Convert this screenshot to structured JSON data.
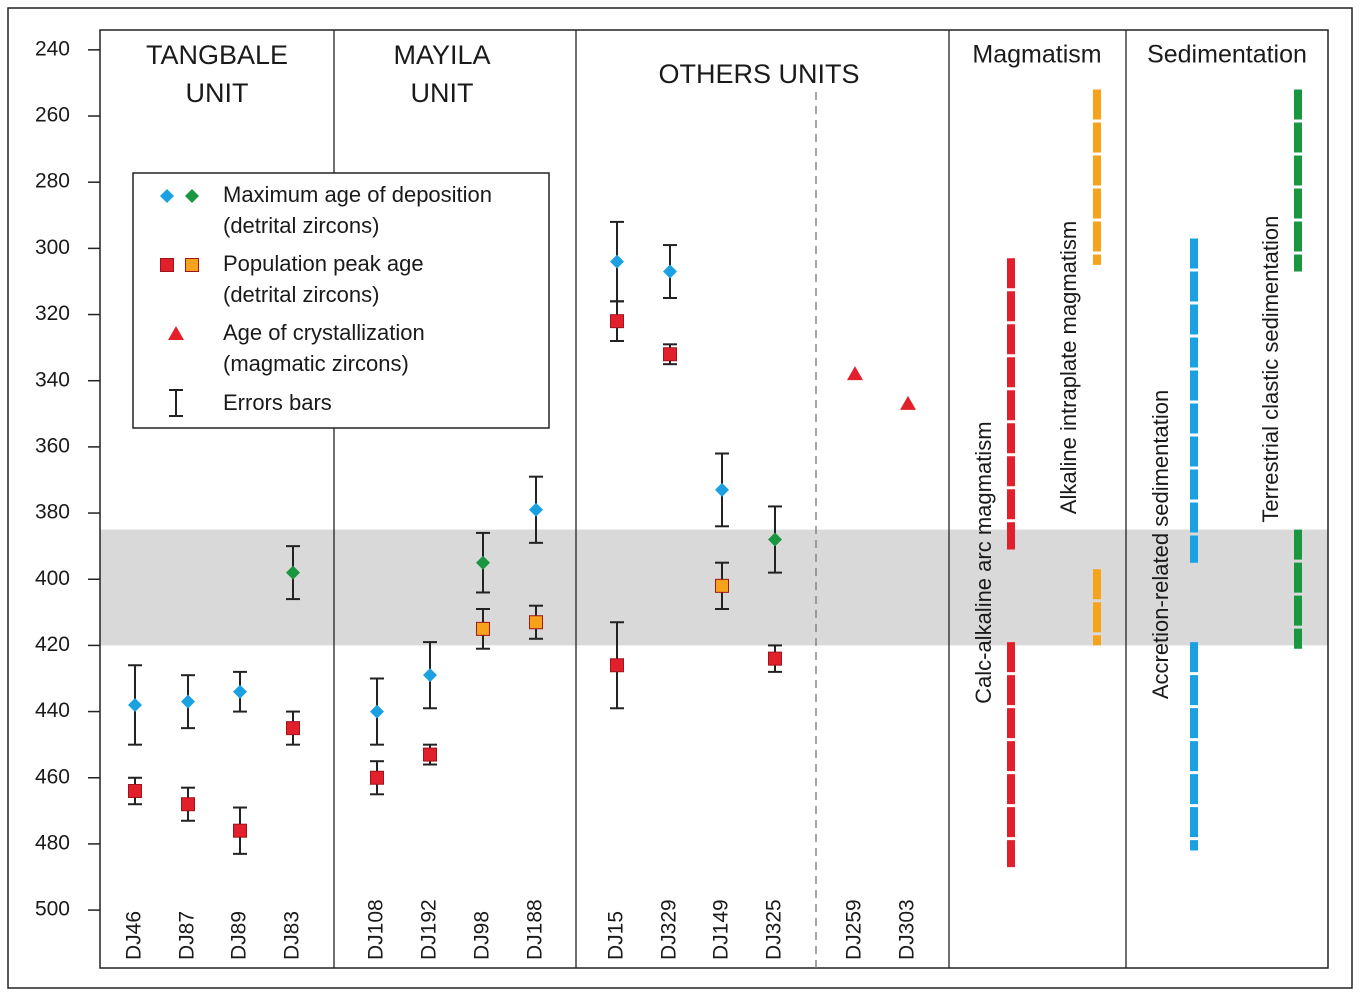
{
  "chart_data": {
    "type": "errorbar",
    "y_inverted": true,
    "ylim": [
      234,
      517.5
    ],
    "yticks": [
      240,
      260,
      280,
      300,
      320,
      340,
      360,
      380,
      400,
      420,
      440,
      460,
      480,
      500
    ],
    "highlight_band": [
      385,
      420
    ],
    "band_color": "#d9d9d9",
    "groups": [
      {
        "lines": [
          "TANGBALE",
          "UNIT"
        ],
        "size": 4
      },
      {
        "lines": [
          "MAYILA",
          "UNIT"
        ],
        "size": 4
      },
      {
        "lines": [
          "OTHERS UNITS"
        ],
        "size": 6
      }
    ],
    "categories": [
      "DJ46",
      "DJ87",
      "DJ89",
      "DJ83",
      "DJ108",
      "DJ192",
      "DJ98",
      "DJ188",
      "DJ15",
      "DJ329",
      "DJ149",
      "DJ325",
      "DJ259",
      "DJ303"
    ],
    "series": [
      {
        "name": "Maximum age of deposition",
        "subname": "(detrital zircons)",
        "marker": "diamond",
        "legend_colors": [
          "#1ba1e2",
          "#1a9641"
        ],
        "values": [
          438,
          437,
          434,
          398,
          440,
          429,
          395,
          379,
          304,
          307,
          373,
          388,
          null,
          null
        ],
        "errors": [
          12,
          8,
          6,
          8,
          10,
          10,
          9,
          10,
          12,
          8,
          11,
          10,
          null,
          null
        ],
        "colors": [
          "#1ba1e2",
          "#1ba1e2",
          "#1ba1e2",
          "#1a9641",
          "#1ba1e2",
          "#1ba1e2",
          "#1a9641",
          "#1ba1e2",
          "#1ba1e2",
          "#1ba1e2",
          "#1ba1e2",
          "#1a9641",
          null,
          null
        ]
      },
      {
        "name": "Population peak age",
        "subname": "(detrital zircons)",
        "marker": "square",
        "legend_colors": [
          "#e2202c",
          "#f7a21b"
        ],
        "values": [
          464,
          468,
          476,
          445,
          460,
          453,
          415,
          413,
          322,
          332,
          402,
          424,
          null,
          null
        ],
        "errors": [
          4,
          5,
          7,
          5,
          5,
          3,
          6,
          5,
          6,
          3,
          7,
          4,
          null,
          null
        ],
        "colors": [
          "#e2202c",
          "#e2202c",
          "#e2202c",
          "#e2202c",
          "#e2202c",
          "#e2202c",
          "#f7a21b",
          "#f7a21b",
          "#e2202c",
          "#e2202c",
          "#f7a21b",
          "#e2202c",
          null,
          null
        ]
      },
      {
        "marker": "square",
        "values": [
          null,
          null,
          null,
          null,
          null,
          null,
          null,
          null,
          426,
          null,
          null,
          null,
          null,
          null
        ],
        "errors": [
          null,
          null,
          null,
          null,
          null,
          null,
          null,
          null,
          13,
          null,
          null,
          null,
          null,
          null
        ],
        "colors": [
          null,
          null,
          null,
          null,
          null,
          null,
          null,
          null,
          "#e2202c",
          null,
          null,
          null,
          null,
          null
        ]
      },
      {
        "name": "Age of crystallization",
        "subname": "(magmatic zircons)",
        "marker": "triangle",
        "legend_colors": [
          "#e2202c"
        ],
        "values": [
          null,
          null,
          null,
          null,
          null,
          null,
          null,
          null,
          null,
          null,
          null,
          null,
          338,
          347
        ],
        "colors": [
          null,
          null,
          null,
          null,
          null,
          null,
          null,
          null,
          null,
          null,
          null,
          null,
          "#e2202c",
          "#e2202c"
        ]
      }
    ],
    "error_bar_label": "Errors bars",
    "panels": [
      {
        "title": "Magmatism",
        "ranges": [
          {
            "label": "Calc-alkaline arc magmatism",
            "color": "#e2202c",
            "segments": [
              [
                303,
                391
              ],
              [
                419,
                487
              ]
            ]
          },
          {
            "label": "Alkaline intraplate magmatism",
            "color": "#f7a21b",
            "segments": [
              [
                252,
                305
              ],
              [
                397,
                420
              ]
            ]
          }
        ]
      },
      {
        "title": "Sedimentation",
        "ranges": [
          {
            "label": "Accretion-related sedimentation",
            "color": "#1ba1e2",
            "segments": [
              [
                297,
                395
              ],
              [
                419,
                482
              ]
            ]
          },
          {
            "label": "Terrestrial clastic sedimentation",
            "color": "#1a9641",
            "segments": [
              [
                252,
                307
              ],
              [
                385,
                421
              ]
            ]
          }
        ]
      }
    ]
  }
}
